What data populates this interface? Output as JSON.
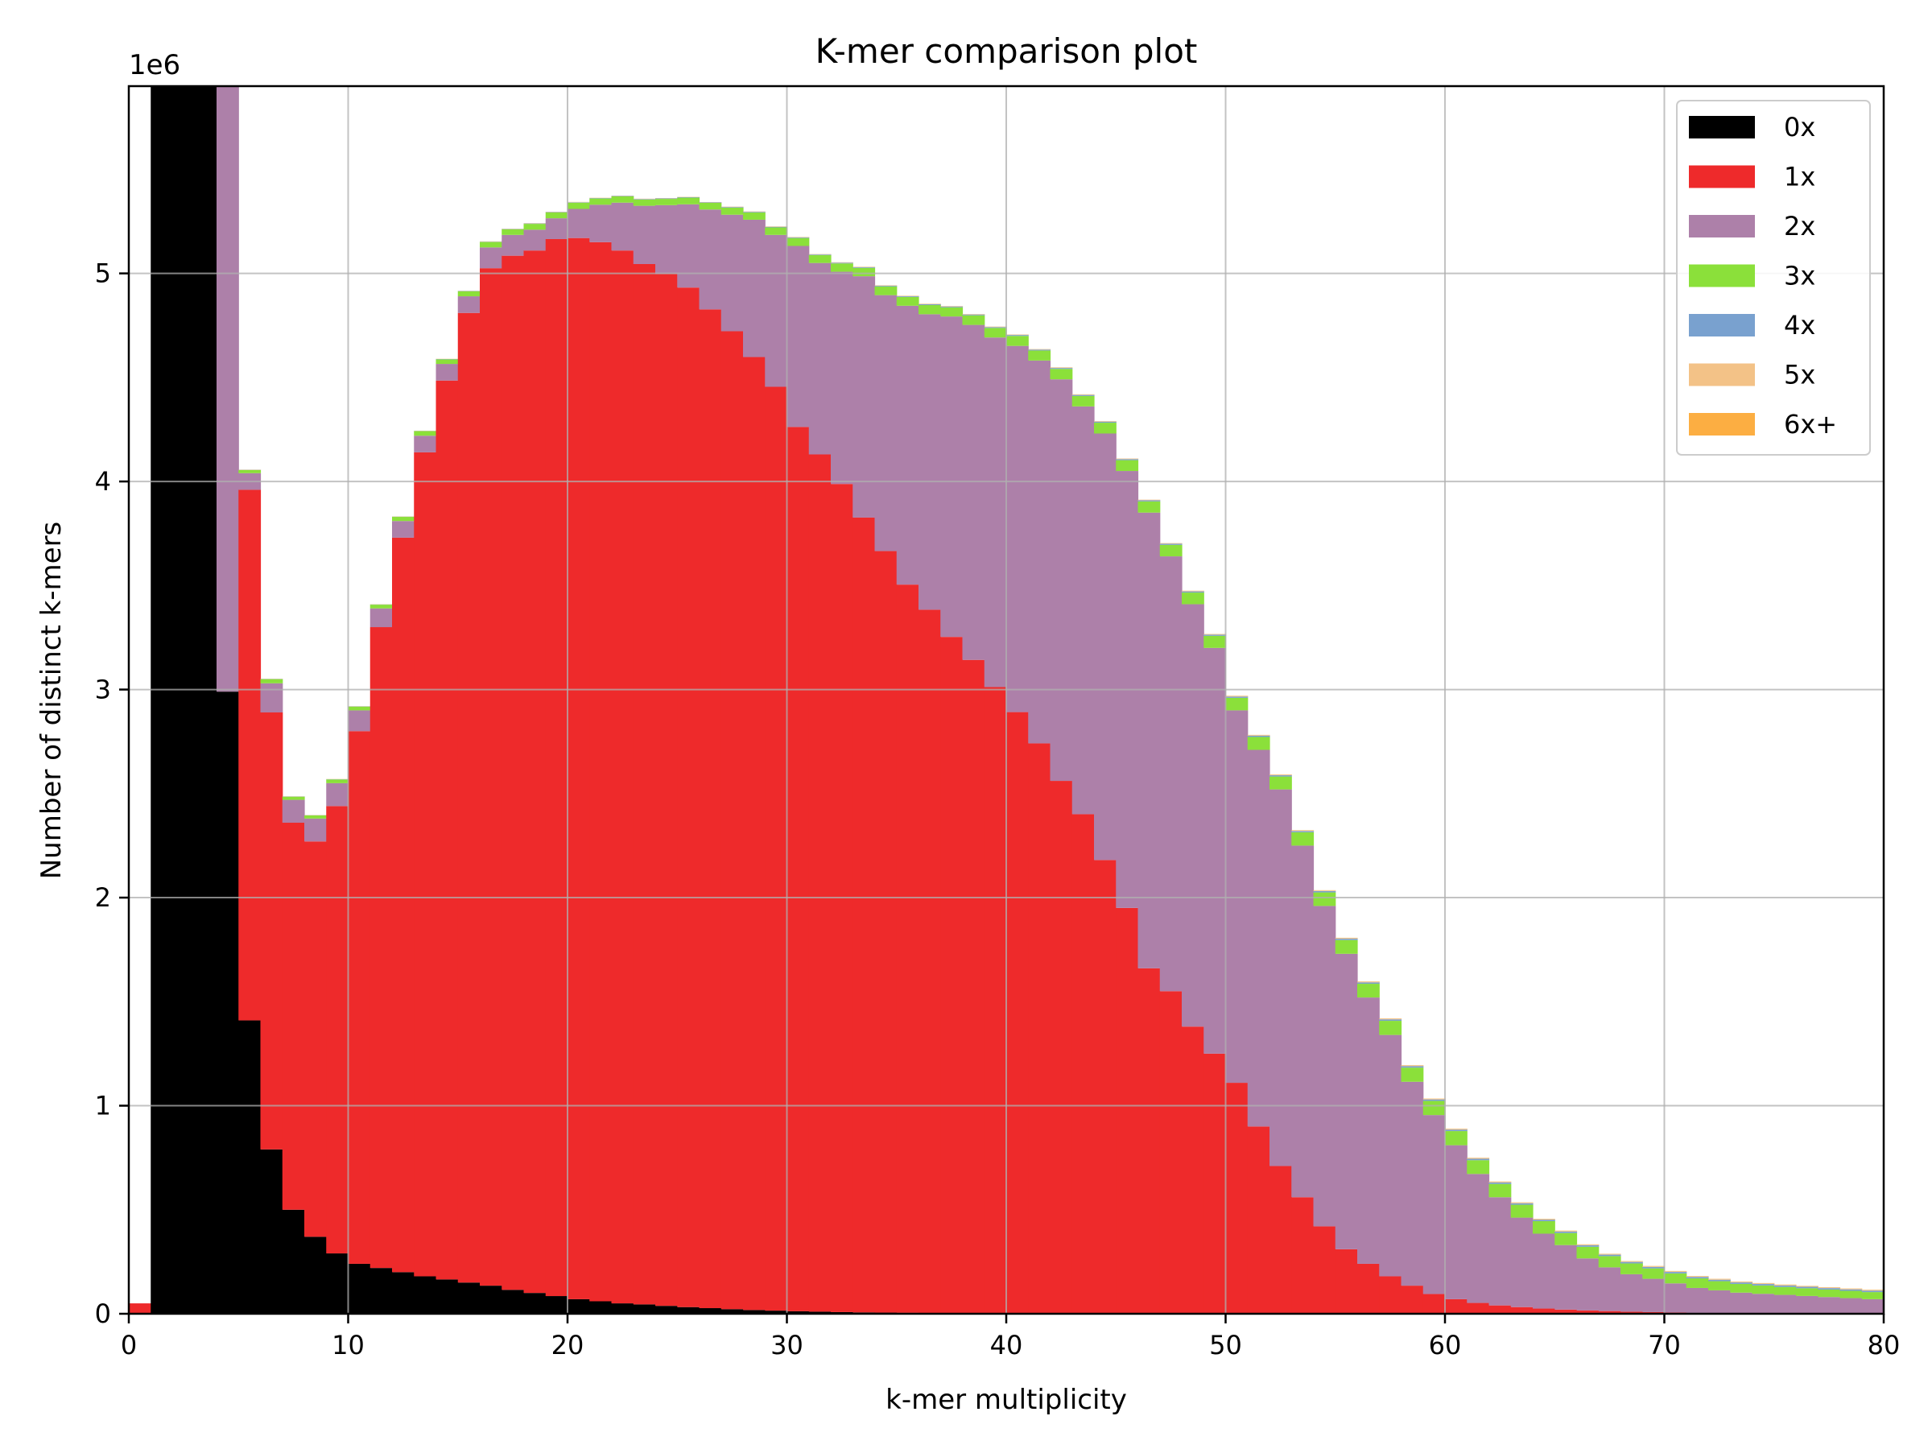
{
  "chart_data": {
    "type": "bar",
    "stacked": true,
    "title": "K-mer comparison plot",
    "xlabel": "k-mer multiplicity",
    "ylabel": "Number of distinct k-mers",
    "y_offset_text": "1e6",
    "xlim": [
      0,
      80
    ],
    "ylim": [
      0,
      5900000
    ],
    "x_ticks": [
      0,
      10,
      20,
      30,
      40,
      50,
      60,
      70,
      80
    ],
    "y_ticks": [
      0,
      1,
      2,
      3,
      4,
      5
    ],
    "grid": true,
    "legend_position": "top-right",
    "bin_width": 1,
    "x": [
      0,
      1,
      2,
      3,
      4,
      5,
      6,
      7,
      8,
      9,
      10,
      11,
      12,
      13,
      14,
      15,
      16,
      17,
      18,
      19,
      20,
      21,
      22,
      23,
      24,
      25,
      26,
      27,
      28,
      29,
      30,
      31,
      32,
      33,
      34,
      35,
      36,
      37,
      38,
      39,
      40,
      41,
      42,
      43,
      44,
      45,
      46,
      47,
      48,
      49,
      50,
      51,
      52,
      53,
      54,
      55,
      56,
      57,
      58,
      59,
      60,
      61,
      62,
      63,
      64,
      65,
      66,
      67,
      68,
      69,
      70,
      71,
      72,
      73,
      74,
      75,
      76,
      77,
      78,
      79
    ],
    "series": [
      {
        "name": "0x",
        "color": "#000000",
        "values": [
          0,
          5900000,
          5900000,
          5900000,
          2990000,
          1410000,
          790000,
          500000,
          370000,
          290000,
          240000,
          220000,
          200000,
          180000,
          165000,
          150000,
          135000,
          115000,
          100000,
          85000,
          70000,
          60000,
          50000,
          45000,
          38000,
          32000,
          27000,
          22000,
          18000,
          15000,
          12000,
          10000,
          8000,
          6500,
          5500,
          4500,
          3700,
          3000,
          2500,
          2000,
          1600,
          1300,
          1000,
          800,
          600,
          500,
          400,
          300,
          200,
          150,
          100,
          80,
          60,
          50,
          40,
          30,
          20,
          15,
          10,
          8,
          6,
          5,
          4,
          3,
          2,
          2,
          1,
          1,
          1,
          1,
          0,
          0,
          0,
          0,
          0,
          0,
          0,
          0,
          0,
          0
        ]
      },
      {
        "name": "1x",
        "color": "#ee2a2b",
        "values": [
          50000,
          0,
          0,
          0,
          0,
          2550000,
          2100000,
          1860000,
          1900000,
          2150000,
          2560000,
          3080000,
          3530000,
          3960000,
          4320000,
          4660000,
          4890000,
          4970000,
          5010000,
          5080000,
          5100000,
          5090000,
          5060000,
          5000000,
          4960000,
          4900000,
          4800000,
          4700000,
          4580000,
          4440000,
          4250000,
          4120000,
          3980000,
          3820000,
          3660000,
          3500000,
          3380000,
          3250000,
          3140000,
          3010000,
          2890000,
          2740000,
          2560000,
          2400000,
          2180000,
          1950000,
          1660000,
          1550000,
          1380000,
          1250000,
          1110000,
          900000,
          710000,
          560000,
          420000,
          310000,
          240000,
          180000,
          135000,
          95000,
          70000,
          52000,
          40000,
          32000,
          25000,
          20000,
          16000,
          13000,
          10000,
          8000,
          6000,
          4000,
          2500,
          1500,
          1000,
          700,
          500,
          300,
          200,
          100
        ]
      },
      {
        "name": "2x",
        "color": "#ad80a9",
        "values": [
          0,
          0,
          0,
          0,
          3100000,
          80000,
          140000,
          110000,
          110000,
          110000,
          100000,
          90000,
          80000,
          80000,
          80000,
          80000,
          100000,
          100000,
          100000,
          100000,
          140000,
          180000,
          230000,
          280000,
          330000,
          400000,
          480000,
          560000,
          660000,
          730000,
          870000,
          920000,
          1020000,
          1160000,
          1230000,
          1340000,
          1420000,
          1540000,
          1610000,
          1680000,
          1760000,
          1840000,
          1930000,
          1960000,
          2050000,
          2100000,
          2190000,
          2090000,
          2030000,
          1950000,
          1790000,
          1810000,
          1810000,
          1690000,
          1540000,
          1420000,
          1280000,
          1160000,
          980000,
          860000,
          740000,
          620000,
          520000,
          430000,
          360000,
          310000,
          250000,
          210000,
          180000,
          160000,
          140000,
          120000,
          110000,
          100000,
          95000,
          90000,
          85000,
          80000,
          75000,
          70000
        ]
      },
      {
        "name": "3x",
        "color": "#8be03a",
        "values": [
          0,
          0,
          0,
          0,
          80000,
          15000,
          20000,
          15000,
          15000,
          18000,
          18000,
          18000,
          20000,
          22000,
          22000,
          24000,
          26000,
          27000,
          28000,
          28000,
          30000,
          30000,
          30000,
          30000,
          30000,
          32000,
          32000,
          34000,
          35000,
          36000,
          38000,
          38000,
          40000,
          40000,
          42000,
          42000,
          44000,
          44000,
          46000,
          46000,
          48000,
          48000,
          50000,
          50000,
          52000,
          52000,
          54000,
          55000,
          56000,
          58000,
          60000,
          62000,
          62000,
          64000,
          65000,
          66000,
          66000,
          68000,
          68000,
          68000,
          68000,
          66000,
          64000,
          62000,
          60000,
          58000,
          56000,
          54000,
          52000,
          50000,
          48000,
          46000,
          44000,
          42000,
          40000,
          38000,
          37000,
          36000,
          35000,
          34000
        ]
      },
      {
        "name": "4x",
        "color": "#79a1cf",
        "values": [
          0,
          0,
          0,
          0,
          0,
          1000,
          1000,
          1000,
          1000,
          1000,
          1000,
          1000,
          1000,
          1000,
          1500,
          1500,
          1500,
          1500,
          2000,
          2000,
          2000,
          2000,
          2000,
          2500,
          2500,
          2500,
          2500,
          3000,
          3000,
          3000,
          3000,
          3000,
          3500,
          3500,
          3500,
          3500,
          4000,
          4000,
          4000,
          4000,
          4500,
          4500,
          4500,
          5000,
          5000,
          5000,
          5000,
          5500,
          5500,
          5500,
          6000,
          6000,
          6000,
          6000,
          6500,
          6500,
          6500,
          7000,
          7000,
          7000,
          7000,
          7000,
          7000,
          7000,
          7000,
          7000,
          7000,
          7000,
          7000,
          7000,
          7000,
          7000,
          7000,
          7000,
          7000,
          7000,
          7000,
          7000,
          7000,
          7000
        ]
      },
      {
        "name": "5x",
        "color": "#f3c287",
        "values": [
          0,
          0,
          0,
          0,
          0,
          500,
          500,
          500,
          500,
          500,
          500,
          500,
          500,
          500,
          500,
          500,
          1000,
          1000,
          1000,
          1000,
          1000,
          1000,
          1000,
          1000,
          1000,
          1000,
          1000,
          1500,
          1500,
          1500,
          1500,
          1500,
          1500,
          1500,
          1500,
          2000,
          2000,
          2000,
          2000,
          2000,
          2000,
          2000,
          2500,
          2500,
          2500,
          2500,
          2500,
          2500,
          3000,
          3000,
          3000,
          3000,
          3000,
          3000,
          3000,
          3500,
          3500,
          3500,
          3500,
          3500,
          3500,
          3500,
          3500,
          3500,
          3500,
          3500,
          3500,
          3500,
          3500,
          3500,
          3500,
          3500,
          3500,
          3500,
          3500,
          3500,
          3500,
          3500,
          3500,
          3500
        ]
      },
      {
        "name": "6x+",
        "color": "#fcae42",
        "values": [
          0,
          0,
          0,
          0,
          0,
          500,
          500,
          500,
          500,
          500,
          500,
          500,
          500,
          500,
          500,
          500,
          500,
          500,
          500,
          500,
          500,
          500,
          500,
          500,
          500,
          500,
          500,
          500,
          500,
          500,
          500,
          500,
          500,
          500,
          500,
          500,
          500,
          500,
          500,
          500,
          500,
          500,
          500,
          500,
          500,
          500,
          500,
          500,
          500,
          500,
          1000,
          1000,
          1000,
          1000,
          1000,
          1000,
          1000,
          1000,
          1000,
          1000,
          1000,
          1000,
          1000,
          1000,
          1000,
          1000,
          1000,
          1000,
          1000,
          1000,
          1000,
          1000,
          1000,
          1000,
          1000,
          1000,
          1000,
          1000,
          1000,
          1000
        ]
      }
    ]
  }
}
